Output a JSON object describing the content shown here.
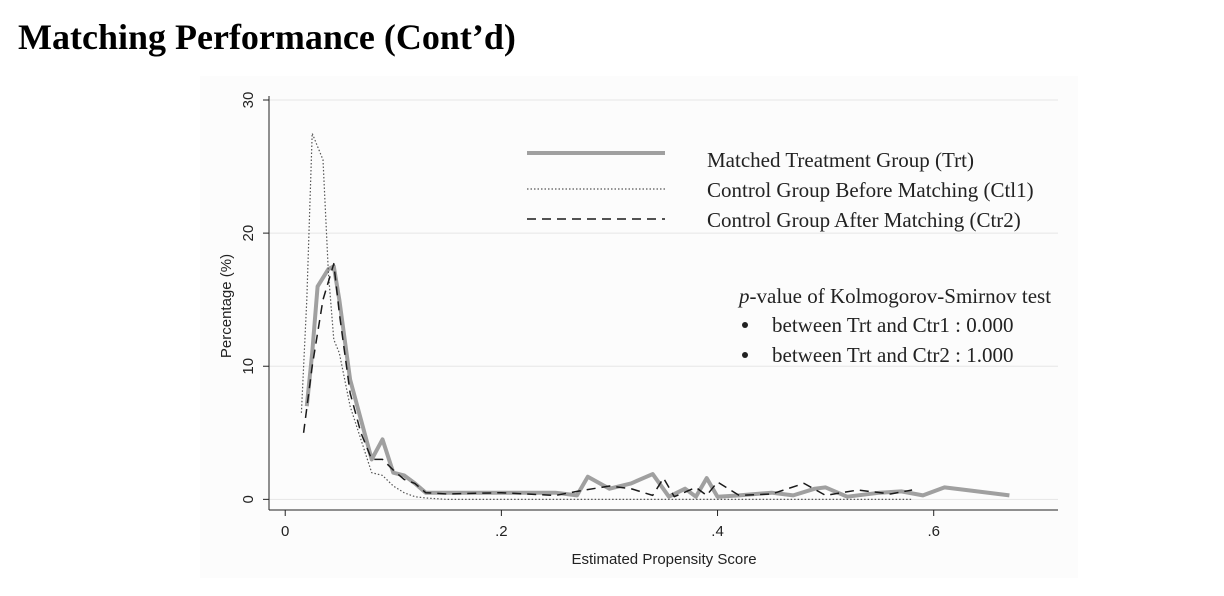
{
  "slide": {
    "title": "Matching Performance (Cont’d)"
  },
  "chart_data": {
    "type": "line",
    "title": "",
    "xlabel": "Estimated Propensity Score",
    "ylabel": "Percentage (%)",
    "xlim": [
      -0.015,
      0.715
    ],
    "ylim": [
      -0.8,
      30.3
    ],
    "xticks": [
      0,
      0.2,
      0.4,
      0.6
    ],
    "xtick_labels": [
      "0",
      ".2",
      ".4",
      ".6"
    ],
    "yticks": [
      0,
      10,
      20,
      30
    ],
    "ytick_labels": [
      "0",
      "10",
      "20",
      "30"
    ],
    "grid": true,
    "legend_position": "top-right",
    "series": [
      {
        "name": "Matched Treatment Group (Trt)",
        "color": "#a0a0a0",
        "style": "solid-thick",
        "x": [
          0.02,
          0.025,
          0.03,
          0.04,
          0.045,
          0.05,
          0.06,
          0.07,
          0.08,
          0.09,
          0.1,
          0.11,
          0.12,
          0.13,
          0.15,
          0.2,
          0.25,
          0.27,
          0.28,
          0.3,
          0.32,
          0.34,
          0.355,
          0.37,
          0.38,
          0.39,
          0.4,
          0.42,
          0.45,
          0.47,
          0.49,
          0.5,
          0.52,
          0.55,
          0.57,
          0.59,
          0.61,
          0.63,
          0.67
        ],
        "y": [
          7,
          11,
          16,
          17.3,
          17.5,
          15,
          9,
          6,
          3,
          4.5,
          2,
          1.8,
          1.2,
          0.5,
          0.5,
          0.5,
          0.5,
          0.3,
          1.7,
          0.8,
          1.2,
          1.9,
          0.2,
          0.8,
          0.2,
          1.6,
          0.2,
          0.3,
          0.5,
          0.3,
          0.8,
          0.9,
          0.2,
          0.5,
          0.6,
          0.3,
          0.9,
          0.7,
          0.3
        ]
      },
      {
        "name": "Control Group Before Matching (Ctl1)",
        "color": "#555555",
        "style": "dotted",
        "x": [
          0.015,
          0.02,
          0.025,
          0.03,
          0.035,
          0.04,
          0.045,
          0.05,
          0.06,
          0.07,
          0.08,
          0.09,
          0.1,
          0.11,
          0.12,
          0.13,
          0.15,
          0.2,
          0.3,
          0.4,
          0.5,
          0.58
        ],
        "y": [
          6.5,
          15,
          27.5,
          26.5,
          25.5,
          17,
          12,
          11,
          7,
          4.5,
          2,
          1.8,
          1,
          0.5,
          0.2,
          0.1,
          0,
          0,
          0,
          0,
          0,
          0
        ]
      },
      {
        "name": "Control Group After Matching (Ctr2)",
        "color": "#1a1a1a",
        "style": "dashed",
        "x": [
          0.017,
          0.025,
          0.035,
          0.045,
          0.05,
          0.06,
          0.07,
          0.08,
          0.09,
          0.1,
          0.11,
          0.12,
          0.13,
          0.15,
          0.2,
          0.25,
          0.27,
          0.3,
          0.32,
          0.34,
          0.35,
          0.36,
          0.38,
          0.39,
          0.4,
          0.42,
          0.45,
          0.48,
          0.5,
          0.53,
          0.56,
          0.58
        ],
        "y": [
          5,
          10,
          15,
          17.7,
          14,
          8,
          5,
          3,
          3,
          2.2,
          1.5,
          1.2,
          0.5,
          0.4,
          0.5,
          0.3,
          0.6,
          1,
          0.8,
          0.3,
          1.6,
          0.2,
          0.9,
          0.3,
          1.3,
          0.3,
          0.4,
          1.2,
          0.3,
          0.7,
          0.4,
          0.7
        ]
      }
    ],
    "annotation": {
      "heading_italic": "p",
      "heading_rest": "-value of Kolmogorov-Smirnov test",
      "bullets": [
        "between Trt and Ctr1 : 0.000",
        "between Trt and Ctr2 : 1.000"
      ]
    }
  }
}
